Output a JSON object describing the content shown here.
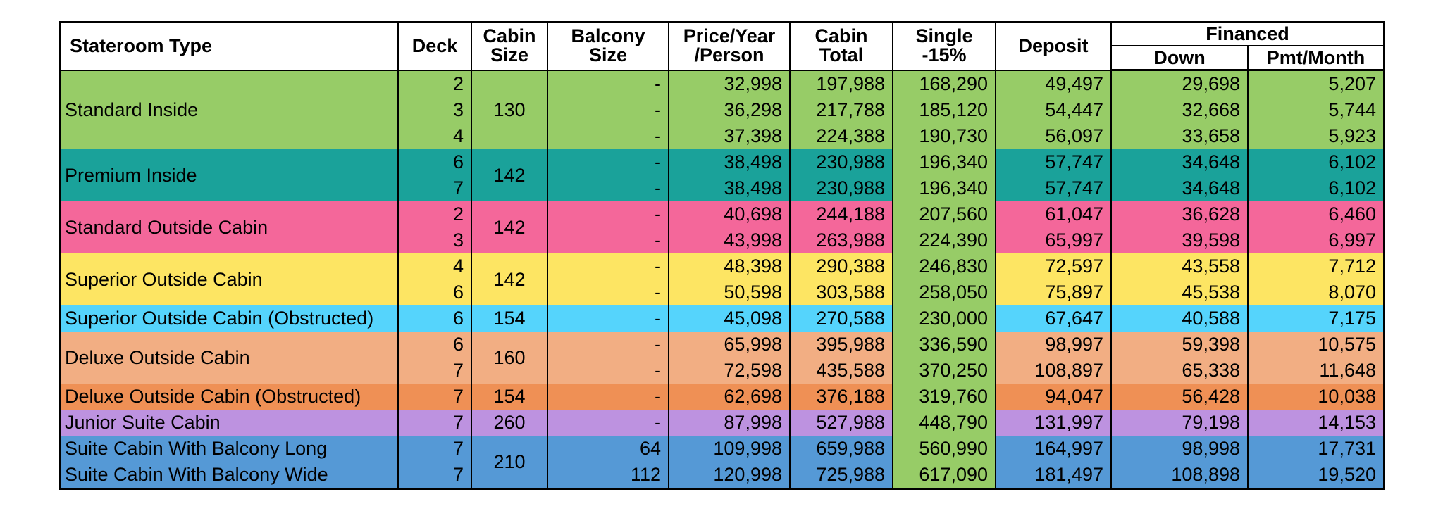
{
  "header": {
    "stateroom_type": "Stateroom Type",
    "deck": "Deck",
    "cabin_size_1": "Cabin",
    "cabin_size_2": "Size",
    "balcony_size_1": "Balcony",
    "balcony_size_2": "Size",
    "price_1": "Price/Year",
    "price_2": "/Person",
    "cabin_total_1": "Cabin",
    "cabin_total_2": "Total",
    "single_1": "Single",
    "single_2": "-15%",
    "deposit": "Deposit",
    "financed": "Financed",
    "down": "Down",
    "pmt_month": "Pmt/Month"
  },
  "colors": {
    "single_column": "#97cc67",
    "standard_inside": "#97cc67",
    "premium_inside": "#1aa29a",
    "standard_outside": "#f4679a",
    "superior_outside": "#fde563",
    "superior_obstructed": "#55d4fc",
    "deluxe_outside": "#f2ae83",
    "deluxe_obstructed": "#ef9055",
    "junior_suite": "#bd92e0",
    "suite_balcony": "#5599d6"
  },
  "groups": [
    {
      "label": "Standard Inside",
      "color_key": "standard_inside",
      "cabin_size": "130",
      "rows": [
        {
          "deck": "2",
          "balcony": "-",
          "price": "32,998",
          "total": "197,988",
          "single": "168,290",
          "deposit": "49,497",
          "down": "29,698",
          "pmt": "5,207"
        },
        {
          "deck": "3",
          "balcony": "-",
          "price": "36,298",
          "total": "217,788",
          "single": "185,120",
          "deposit": "54,447",
          "down": "32,668",
          "pmt": "5,744"
        },
        {
          "deck": "4",
          "balcony": "-",
          "price": "37,398",
          "total": "224,388",
          "single": "190,730",
          "deposit": "56,097",
          "down": "33,658",
          "pmt": "5,923"
        }
      ]
    },
    {
      "label": "Premium Inside",
      "color_key": "premium_inside",
      "cabin_size": "142",
      "rows": [
        {
          "deck": "6",
          "balcony": "-",
          "price": "38,498",
          "total": "230,988",
          "single": "196,340",
          "deposit": "57,747",
          "down": "34,648",
          "pmt": "6,102"
        },
        {
          "deck": "7",
          "balcony": "-",
          "price": "38,498",
          "total": "230,988",
          "single": "196,340",
          "deposit": "57,747",
          "down": "34,648",
          "pmt": "6,102"
        }
      ]
    },
    {
      "label": "Standard Outside Cabin",
      "color_key": "standard_outside",
      "cabin_size": "142",
      "rows": [
        {
          "deck": "2",
          "balcony": "-",
          "price": "40,698",
          "total": "244,188",
          "single": "207,560",
          "deposit": "61,047",
          "down": "36,628",
          "pmt": "6,460"
        },
        {
          "deck": "3",
          "balcony": "-",
          "price": "43,998",
          "total": "263,988",
          "single": "224,390",
          "deposit": "65,997",
          "down": "39,598",
          "pmt": "6,997"
        }
      ]
    },
    {
      "label": "Superior Outside Cabin",
      "color_key": "superior_outside",
      "cabin_size": "142",
      "rows": [
        {
          "deck": "4",
          "balcony": "-",
          "price": "48,398",
          "total": "290,388",
          "single": "246,830",
          "deposit": "72,597",
          "down": "43,558",
          "pmt": "7,712"
        },
        {
          "deck": "6",
          "balcony": "-",
          "price": "50,598",
          "total": "303,588",
          "single": "258,050",
          "deposit": "75,897",
          "down": "45,538",
          "pmt": "8,070"
        }
      ]
    },
    {
      "label": "Superior Outside Cabin (Obstructed)",
      "color_key": "superior_obstructed",
      "cabin_size": "154",
      "rows": [
        {
          "deck": "6",
          "balcony": "-",
          "price": "45,098",
          "total": "270,588",
          "single": "230,000",
          "deposit": "67,647",
          "down": "40,588",
          "pmt": "7,175"
        }
      ]
    },
    {
      "label": "Deluxe Outside Cabin",
      "color_key": "deluxe_outside",
      "cabin_size": "160",
      "rows": [
        {
          "deck": "6",
          "balcony": "-",
          "price": "65,998",
          "total": "395,988",
          "single": "336,590",
          "deposit": "98,997",
          "down": "59,398",
          "pmt": "10,575"
        },
        {
          "deck": "7",
          "balcony": "-",
          "price": "72,598",
          "total": "435,588",
          "single": "370,250",
          "deposit": "108,897",
          "down": "65,338",
          "pmt": "11,648"
        }
      ]
    },
    {
      "label": "Deluxe Outside Cabin (Obstructed)",
      "color_key": "deluxe_obstructed",
      "cabin_size": "154",
      "rows": [
        {
          "deck": "7",
          "balcony": "-",
          "price": "62,698",
          "total": "376,188",
          "single": "319,760",
          "deposit": "94,047",
          "down": "56,428",
          "pmt": "10,038"
        }
      ]
    },
    {
      "label": "Junior Suite Cabin",
      "color_key": "junior_suite",
      "cabin_size": "260",
      "rows": [
        {
          "deck": "7",
          "balcony": "-",
          "price": "87,998",
          "total": "527,988",
          "single": "448,790",
          "deposit": "131,997",
          "down": "79,198",
          "pmt": "14,153"
        }
      ]
    },
    {
      "label": "",
      "color_key": "suite_balcony",
      "cabin_size": "210",
      "row_labels": [
        "Suite Cabin With Balcony Long",
        "Suite Cabin With Balcony Wide"
      ],
      "rows": [
        {
          "deck": "7",
          "balcony": "64",
          "price": "109,998",
          "total": "659,988",
          "single": "560,990",
          "deposit": "164,997",
          "down": "98,998",
          "pmt": "17,731"
        },
        {
          "deck": "7",
          "balcony": "112",
          "price": "120,998",
          "total": "725,988",
          "single": "617,090",
          "deposit": "181,497",
          "down": "108,898",
          "pmt": "19,520"
        }
      ]
    }
  ]
}
